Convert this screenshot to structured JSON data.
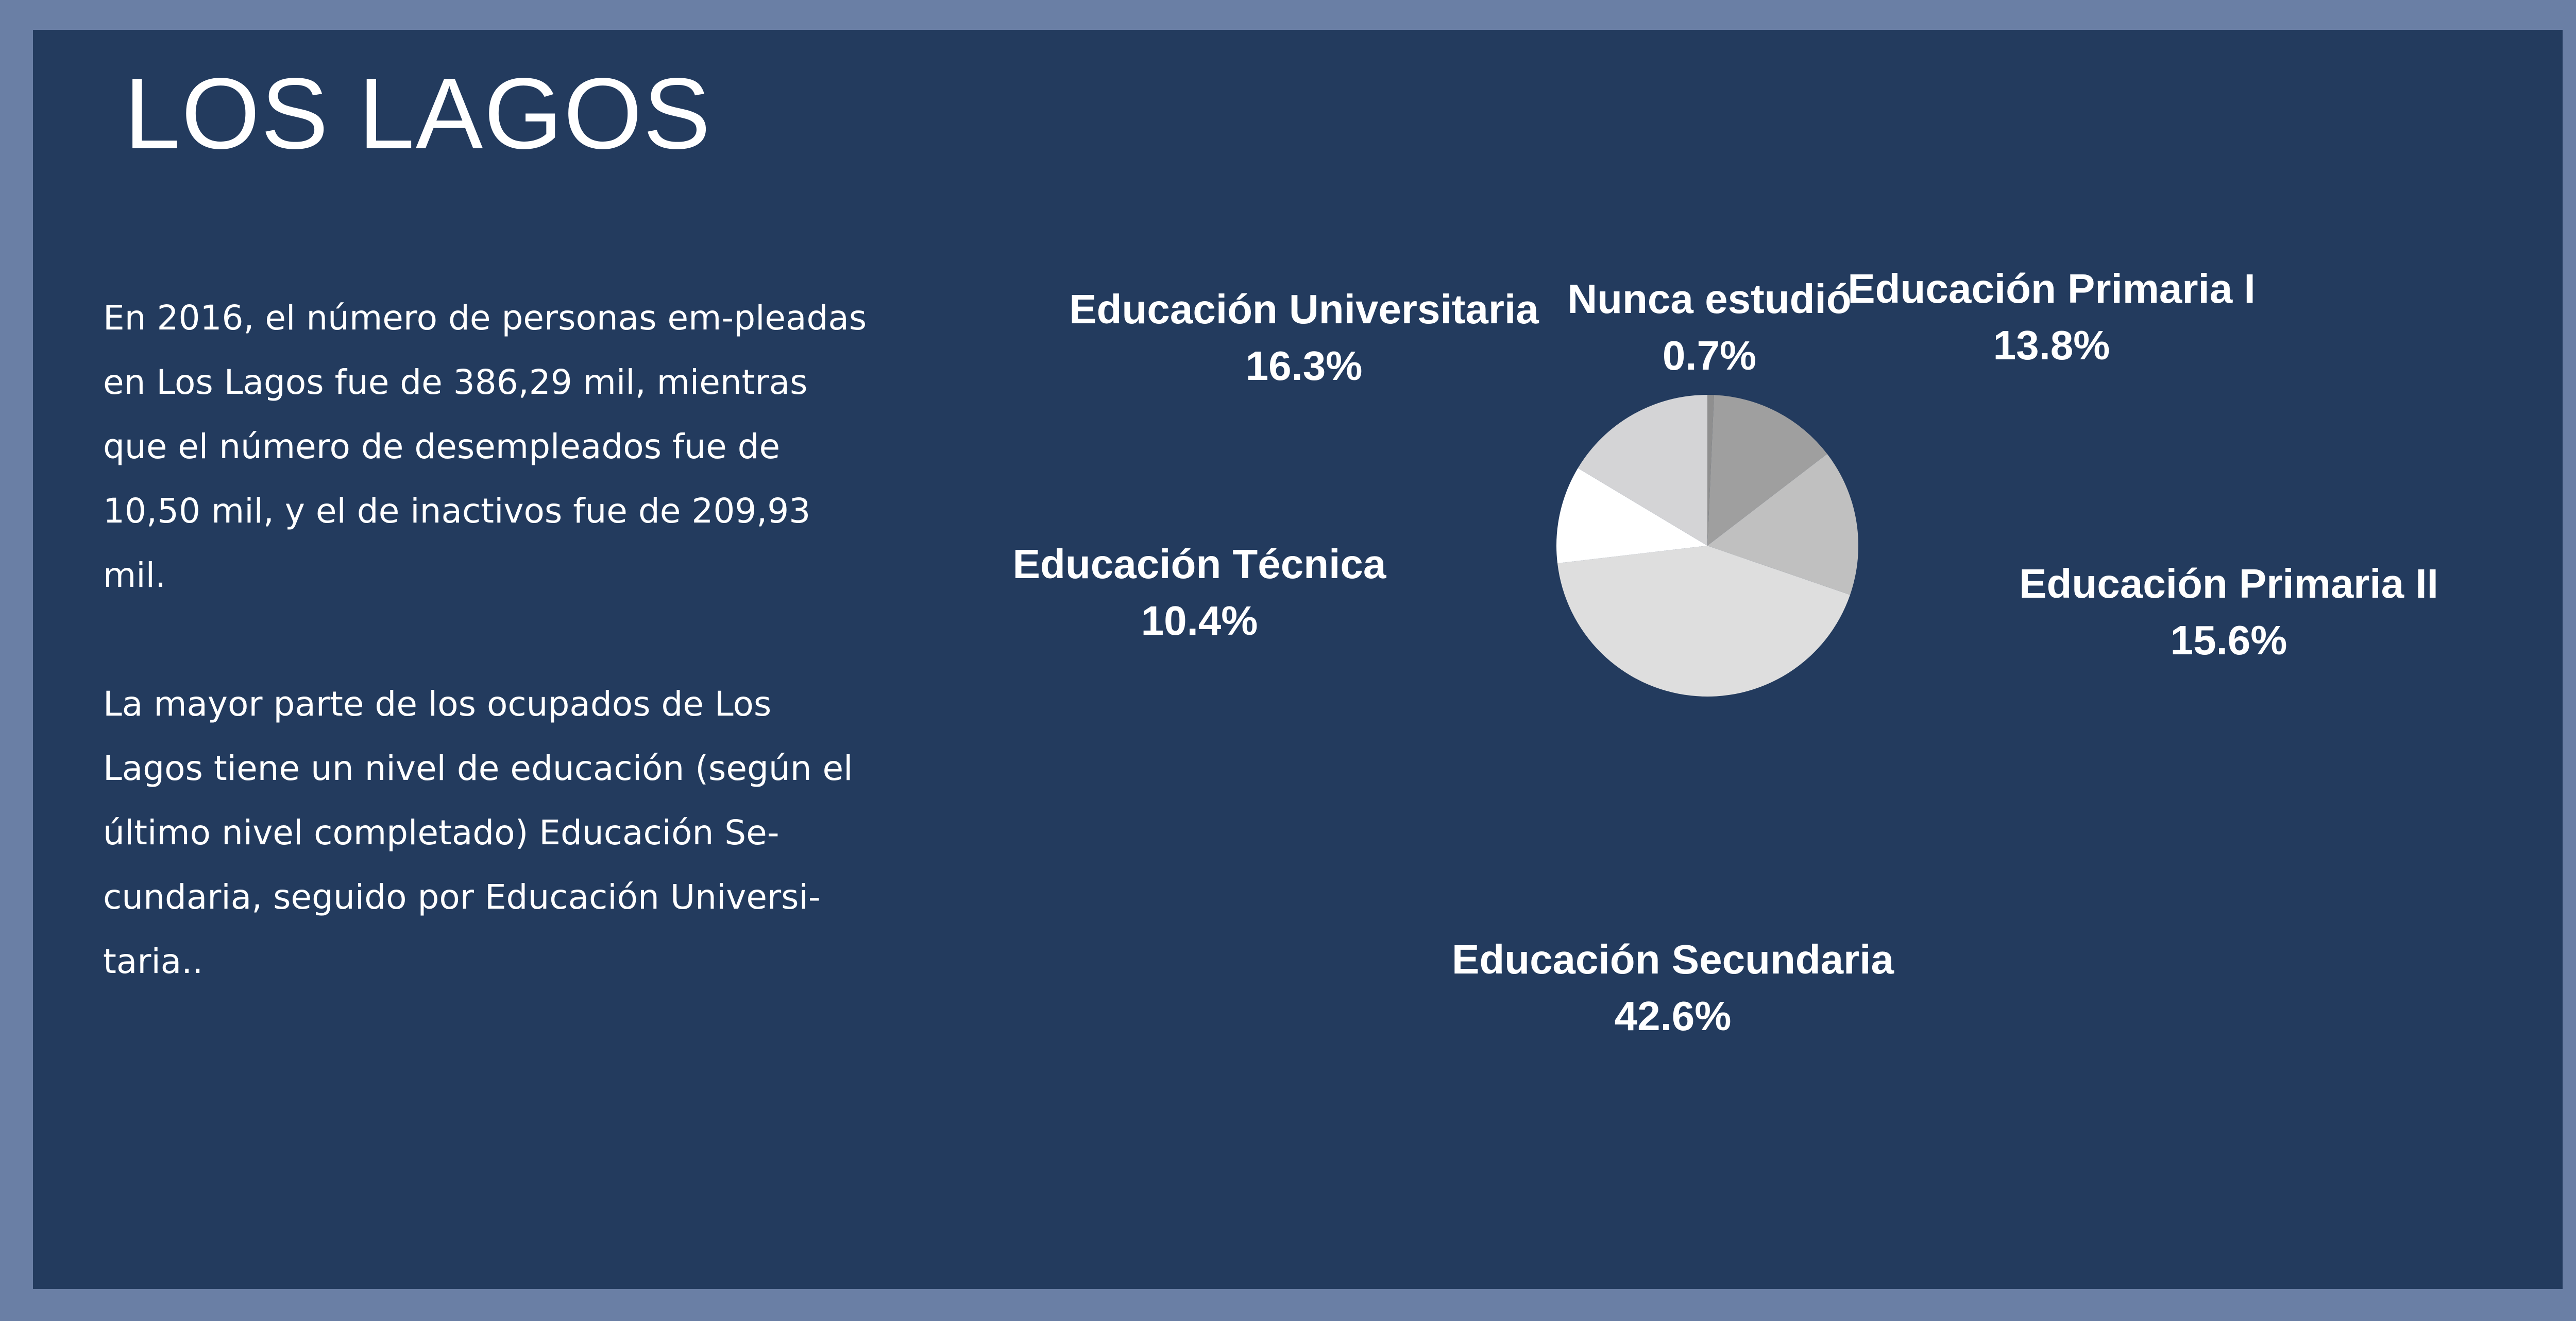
{
  "title": "LOS LAGOS",
  "description": {
    "paragraph_1": "En 2016, el número de personas em-pleadas en Los Lagos fue de 386,29 mil, mientras que el número de desempleados fue de 10,50 mil, y el de inactivos fue de 209,93 mil.",
    "paragraph_2": "La mayor parte de los ocupados de Los Lagos tiene un nivel de educación (según el último nivel completado) Educación Se-cundaria, seguido por Educación Universi-taria.."
  },
  "chart_data": {
    "type": "pie",
    "title": "",
    "slices": [
      {
        "label": "Nunca estudió",
        "value": 0.7,
        "display": "0.7%",
        "color": "#8f8f8f"
      },
      {
        "label": "Educación Primaria I",
        "value": 13.8,
        "display": "13.8%",
        "color": "#9f9f9f"
      },
      {
        "label": "Educación Primaria II",
        "value": 15.6,
        "display": "15.6%",
        "color": "#c0c0c0"
      },
      {
        "label": "Educación Secundaria",
        "value": 42.6,
        "display": "42.6%",
        "color": "#dedede"
      },
      {
        "label": "Educación Técnica",
        "value": 10.4,
        "display": "10.4%",
        "color": "#ffffff"
      },
      {
        "label": "Educación Universitaria",
        "value": 16.3,
        "display": "16.3%",
        "color": "#d4d4d6"
      }
    ]
  }
}
